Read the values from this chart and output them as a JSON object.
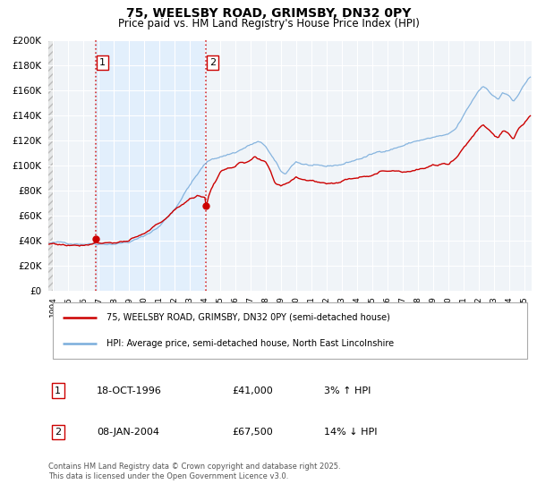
{
  "title_line1": "75, WEELSBY ROAD, GRIMSBY, DN32 0PY",
  "title_line2": "Price paid vs. HM Land Registry's House Price Index (HPI)",
  "ylim": [
    0,
    200000
  ],
  "ytick_step": 20000,
  "background_color": "#ffffff",
  "plot_bg_color": "#f0f4f8",
  "grid_color": "#ffffff",
  "vline1_x": 1996.8,
  "vline2_x": 2004.05,
  "marker1_y": 41000,
  "marker2_y": 67500,
  "sale1_label": "1",
  "sale2_label": "2",
  "sale1_date": "18-OCT-1996",
  "sale1_price": "£41,000",
  "sale1_hpi": "3% ↑ HPI",
  "sale2_date": "08-JAN-2004",
  "sale2_price": "£67,500",
  "sale2_hpi": "14% ↓ HPI",
  "legend_property": "75, WEELSBY ROAD, GRIMSBY, DN32 0PY (semi-detached house)",
  "legend_hpi": "HPI: Average price, semi-detached house, North East Lincolnshire",
  "property_color": "#cc0000",
  "hpi_color": "#7aaddc",
  "footer": "Contains HM Land Registry data © Crown copyright and database right 2025.\nThis data is licensed under the Open Government Licence v3.0.",
  "xmin": 1993.7,
  "xmax": 2025.5,
  "shade_color": "#ddeeff"
}
